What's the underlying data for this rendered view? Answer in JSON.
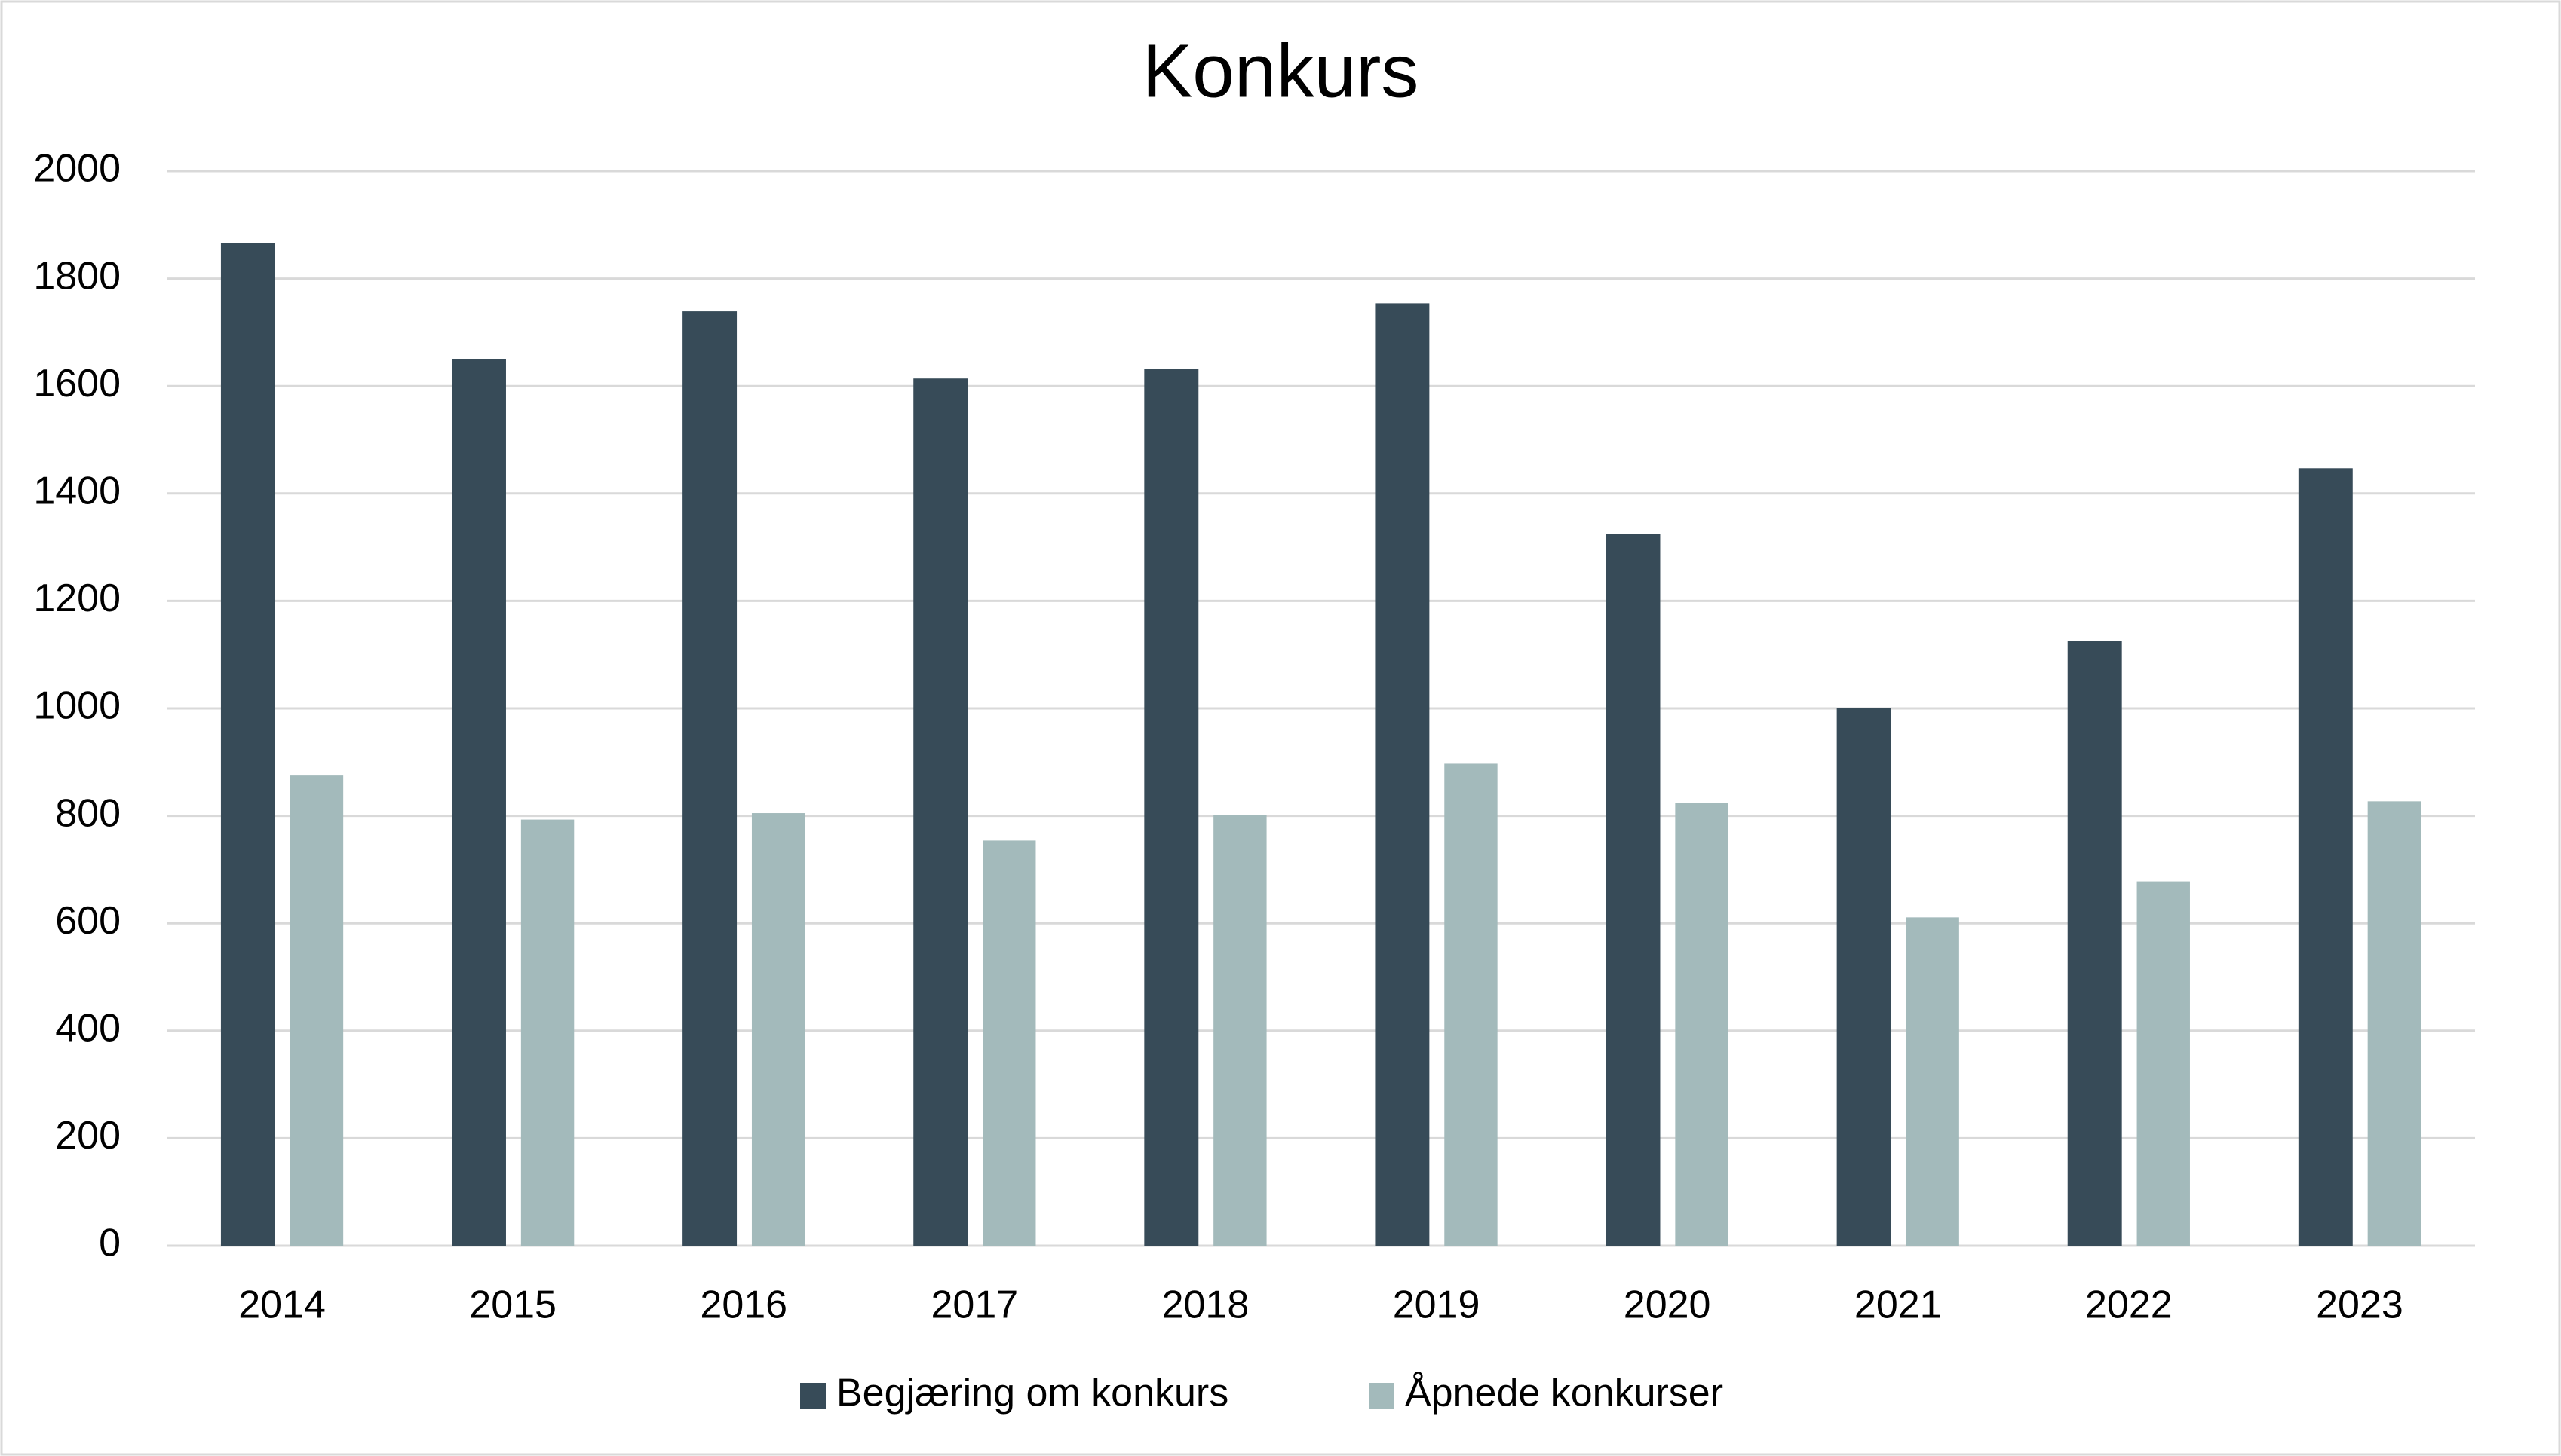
{
  "chart_data": {
    "type": "bar",
    "title": "Konkurs",
    "categories": [
      "2014",
      "2015",
      "2016",
      "2017",
      "2018",
      "2019",
      "2020",
      "2021",
      "2022",
      "2023"
    ],
    "series": [
      {
        "name": "Begjæring om konkurs",
        "color": "#374b58",
        "values": [
          1866,
          1650,
          1739,
          1614,
          1632,
          1754,
          1325,
          1000,
          1125,
          1447
        ]
      },
      {
        "name": "Åpnede konkurser",
        "color": "#a3babb",
        "values": [
          875,
          793,
          805,
          754,
          802,
          897,
          824,
          611,
          678,
          827
        ]
      }
    ],
    "ylim": [
      0,
      2000
    ],
    "yticks": [
      0,
      200,
      400,
      600,
      800,
      1000,
      1200,
      1400,
      1600,
      1800,
      2000
    ],
    "grid": true,
    "legend": "bottom"
  }
}
